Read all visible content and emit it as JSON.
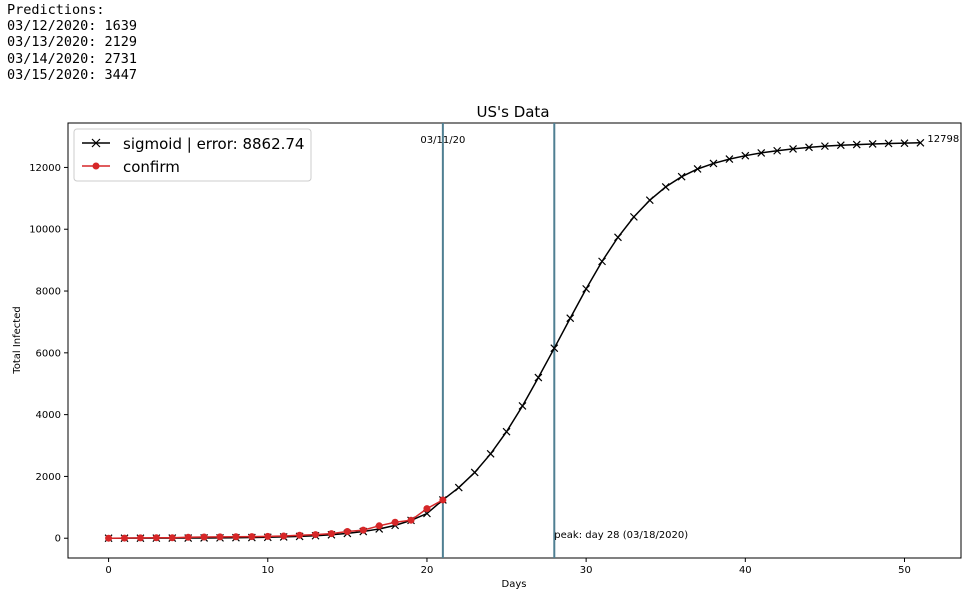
{
  "predictions": {
    "header": "Predictions:",
    "lines": [
      "03/12/2020: 1639",
      "03/13/2020: 2129",
      "03/14/2020: 2731",
      "03/15/2020: 3447"
    ]
  },
  "chart_data": {
    "type": "line",
    "title": "US's Data",
    "xlabel": "Days",
    "ylabel": "Total Infected",
    "xlim": [
      -2.55,
      53.55
    ],
    "ylim": [
      -640,
      13438
    ],
    "xticks": [
      0,
      10,
      20,
      30,
      40,
      50
    ],
    "yticks": [
      0,
      2000,
      4000,
      6000,
      8000,
      10000,
      12000
    ],
    "legend_position": "top-left",
    "series": [
      {
        "name": "sigmoid | error: 8862.74",
        "color": "#000000",
        "marker": "x",
        "x": [
          0,
          1,
          2,
          3,
          4,
          5,
          6,
          7,
          8,
          9,
          10,
          11,
          12,
          13,
          14,
          15,
          16,
          17,
          18,
          19,
          20,
          21,
          22,
          23,
          24,
          25,
          26,
          27,
          28,
          29,
          30,
          31,
          32,
          33,
          34,
          35,
          36,
          37,
          38,
          39,
          40,
          41,
          42,
          43,
          44,
          45,
          46,
          47,
          48,
          49,
          50,
          51
        ],
        "values": [
          1,
          1,
          2,
          3,
          4,
          6,
          8,
          11,
          16,
          22,
          30,
          42,
          58,
          80,
          112,
          156,
          216,
          300,
          416,
          578,
          800,
          1239,
          1639,
          2129,
          2731,
          3447,
          4280,
          5200,
          6150,
          7120,
          8070,
          8960,
          9740,
          10400,
          10940,
          11370,
          11700,
          11950,
          12130,
          12270,
          12380,
          12470,
          12540,
          12600,
          12650,
          12690,
          12720,
          12740,
          12760,
          12775,
          12785,
          12798
        ]
      },
      {
        "name": "confirm",
        "color": "#d62728",
        "marker": "o",
        "x": [
          0,
          1,
          2,
          3,
          4,
          5,
          6,
          7,
          8,
          9,
          10,
          11,
          12,
          13,
          14,
          15,
          16,
          17,
          18,
          19,
          20,
          21
        ],
        "values": [
          1,
          5,
          11,
          15,
          14,
          32,
          40,
          45,
          47,
          53,
          59,
          70,
          98,
          118,
          150,
          217,
          262,
          402,
          518,
          583,
          959,
          1239
        ]
      }
    ],
    "vlines": [
      {
        "x": 21,
        "label": "03/11/20"
      },
      {
        "x": 28,
        "label": "peak: day 28 (03/18/2020)"
      }
    ],
    "end_label": {
      "x": 51,
      "y": 12798,
      "text": "12798"
    }
  }
}
